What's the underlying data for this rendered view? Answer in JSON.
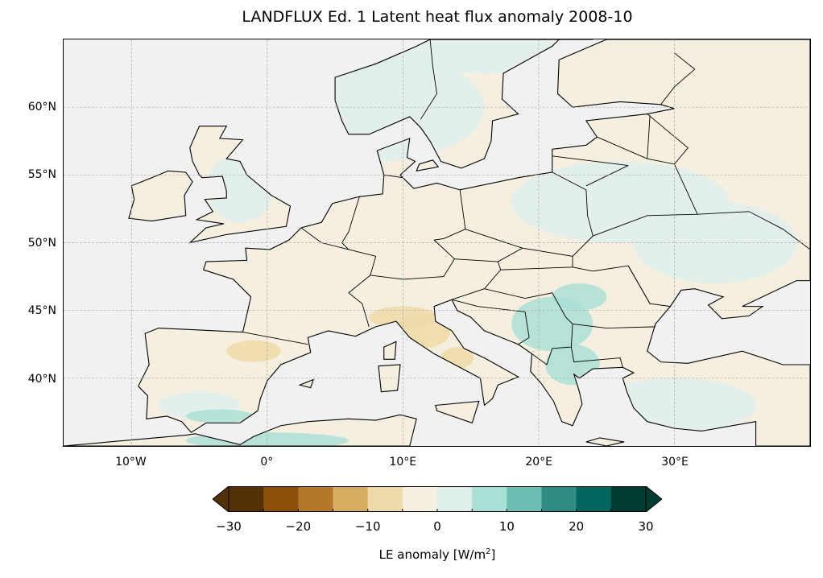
{
  "title": "LANDFLUX Ed. 1 Latent heat flux anomaly 2008-10",
  "map": {
    "projection": "PlateCarree",
    "extent": {
      "lon_min": -15,
      "lon_max": 40,
      "lat_min": 35,
      "lat_max": 65
    },
    "ocean_color": "#f1f1f1",
    "gridlines": "dashed",
    "lat_ticks": [
      {
        "value": 40,
        "label": "40°N"
      },
      {
        "value": 45,
        "label": "45°N"
      },
      {
        "value": 50,
        "label": "50°N"
      },
      {
        "value": 55,
        "label": "55°N"
      },
      {
        "value": 60,
        "label": "60°N"
      }
    ],
    "lon_ticks": [
      {
        "value": -10,
        "label": "10°W"
      },
      {
        "value": 0,
        "label": "0°"
      },
      {
        "value": 10,
        "label": "10°E"
      },
      {
        "value": 20,
        "label": "20°E"
      },
      {
        "value": 30,
        "label": "30°E"
      }
    ]
  },
  "colorbar": {
    "label": "LE anomaly [W/m²]",
    "label_main": "LE anomaly [W/m",
    "label_sup": "2",
    "label_end": "]",
    "extend": "both",
    "levels": [
      -30,
      -25,
      -20,
      -15,
      -10,
      -5,
      0,
      5,
      10,
      15,
      20,
      25,
      30
    ],
    "tick_labels": [
      "−30",
      "−20",
      "−10",
      "0",
      "10",
      "20",
      "30"
    ],
    "tick_values": [
      -30,
      -20,
      -10,
      0,
      10,
      20,
      30
    ],
    "colors": [
      "#543005",
      "#8a4f0b",
      "#b5782a",
      "#d5ad63",
      "#efdaa9",
      "#f5efdf",
      "#dfefec",
      "#aadfd6",
      "#6cbfb3",
      "#2e8c84",
      "#01665e",
      "#003c30"
    ]
  }
}
